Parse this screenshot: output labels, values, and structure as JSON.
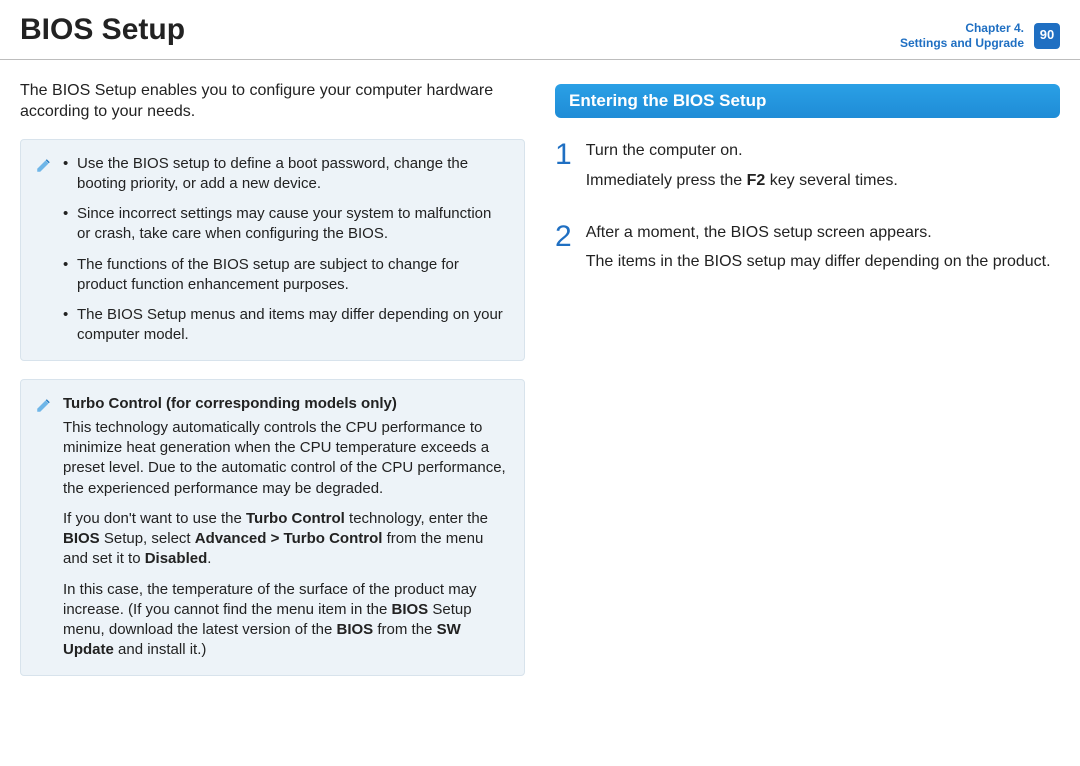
{
  "header": {
    "title": "BIOS Setup",
    "chapter_line1": "Chapter 4.",
    "chapter_line2": "Settings and Upgrade",
    "page_number": "90"
  },
  "left": {
    "intro": "The BIOS Setup enables you to configure your computer hardware according to your needs.",
    "notes": [
      "Use the BIOS setup to define a boot password, change the booting priority, or add a new device.",
      "Since incorrect settings may cause your system to malfunction or crash, take care when configuring the BIOS.",
      "The functions of the BIOS setup are subject to change for product function enhancement purposes.",
      "The BIOS Setup menus and items may differ depending on your computer model."
    ],
    "turbo": {
      "title": "Turbo Control (for corresponding models only)",
      "p1": "This technology automatically controls the CPU performance to minimize heat generation when the CPU temperature exceeds a preset level. Due to the automatic control of the CPU performance, the experienced performance may be degraded.",
      "p2_html": "If you don't want to use the <b>Turbo Control</b> technology, enter the <b>BIOS</b> Setup, select <b>Advanced &gt; Turbo Control</b> from the menu and set it to <b>Disabled</b>.",
      "p3_html": "In this case, the temperature of the surface of the product may increase. (If you cannot find the menu item in the <b>BIOS</b> Setup menu, download the latest version of the <b>BIOS</b> from the <b>SW Update</b> and install it.)"
    }
  },
  "right": {
    "section_title": "Entering the BIOS Setup",
    "steps": [
      {
        "num": "1",
        "lines_html": [
          "Turn the computer on.",
          "Immediately press the <b>F2</b> key several times."
        ]
      },
      {
        "num": "2",
        "lines_html": [
          "After a moment, the BIOS setup screen appears.",
          "The items in the BIOS setup may differ depending on the product."
        ]
      }
    ]
  },
  "style": {
    "accent": "#1f6fc2",
    "note_bg": "#edf3f8",
    "note_border": "#d8e3ec"
  }
}
